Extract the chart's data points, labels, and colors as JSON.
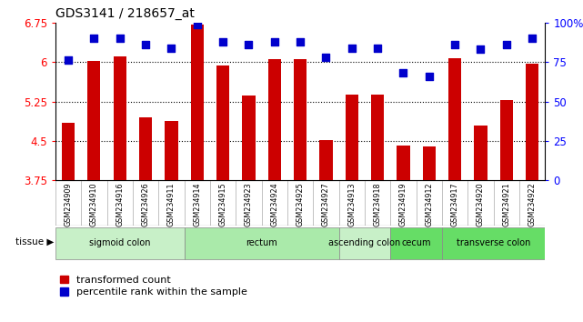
{
  "title": "GDS3141 / 218657_at",
  "samples": [
    "GSM234909",
    "GSM234910",
    "GSM234916",
    "GSM234926",
    "GSM234911",
    "GSM234914",
    "GSM234915",
    "GSM234923",
    "GSM234924",
    "GSM234925",
    "GSM234927",
    "GSM234913",
    "GSM234918",
    "GSM234919",
    "GSM234912",
    "GSM234917",
    "GSM234920",
    "GSM234921",
    "GSM234922"
  ],
  "transformed_count": [
    4.85,
    6.02,
    6.1,
    4.95,
    4.88,
    6.72,
    5.93,
    5.37,
    6.05,
    6.05,
    4.52,
    5.38,
    5.38,
    4.42,
    4.4,
    6.07,
    4.8,
    5.28,
    5.97
  ],
  "percentile_rank": [
    76,
    90,
    90,
    86,
    84,
    99,
    88,
    86,
    88,
    88,
    78,
    84,
    84,
    68,
    66,
    86,
    83,
    86,
    90
  ],
  "tissues": [
    {
      "label": "sigmoid colon",
      "start": 0,
      "end": 5,
      "color": "#c8f0c8"
    },
    {
      "label": "rectum",
      "start": 5,
      "end": 11,
      "color": "#aaeaaa"
    },
    {
      "label": "ascending colon",
      "start": 11,
      "end": 13,
      "color": "#c8f0c8"
    },
    {
      "label": "cecum",
      "start": 13,
      "end": 15,
      "color": "#66dd66"
    },
    {
      "label": "transverse colon",
      "start": 15,
      "end": 19,
      "color": "#66dd66"
    }
  ],
  "ylim": [
    3.75,
    6.75
  ],
  "yticks": [
    3.75,
    4.5,
    5.25,
    6.0,
    6.75
  ],
  "ytick_labels": [
    "3.75",
    "4.5",
    "5.25",
    "6",
    "6.75"
  ],
  "right_ytick_labels": [
    "0",
    "25",
    "50",
    "75",
    "100%"
  ],
  "bar_color": "#cc0000",
  "dot_color": "#0000cc",
  "plot_bg": "#ffffff",
  "xtick_bg": "#d0d0d0",
  "bar_width": 0.5,
  "dot_size": 28,
  "grid_lines": [
    4.5,
    5.25,
    6.0
  ],
  "legend_items": [
    "transformed count",
    "percentile rank within the sample"
  ]
}
